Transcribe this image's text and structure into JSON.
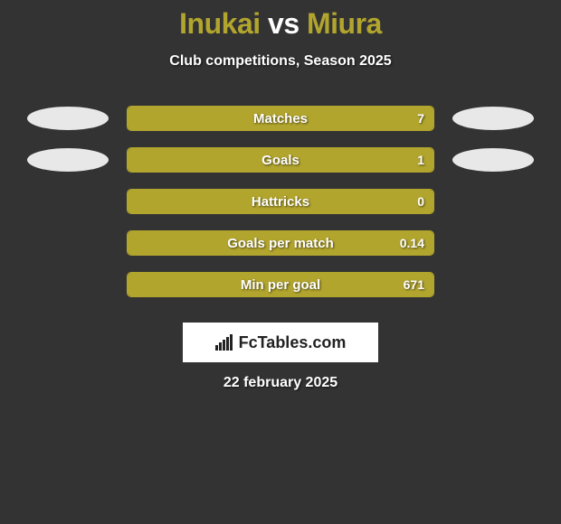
{
  "title": {
    "left": "Inukai",
    "vs": " vs ",
    "right": "Miura",
    "left_color": "#b2a52e",
    "right_color": "#b2a52e",
    "vs_color": "#ffffff"
  },
  "subtitle": "Club competitions, Season 2025",
  "bar_style": {
    "border_color": "#b2a52e",
    "fill_color": "#b2a52e",
    "background": "transparent"
  },
  "ovals": {
    "left_color": "#e8e8e8",
    "right_color": "#e8e8e8"
  },
  "rows": [
    {
      "label": "Matches",
      "value": "7",
      "fill_pct": 100,
      "show_ovals": true
    },
    {
      "label": "Goals",
      "value": "1",
      "fill_pct": 100,
      "show_ovals": true
    },
    {
      "label": "Hattricks",
      "value": "0",
      "fill_pct": 100,
      "show_ovals": false
    },
    {
      "label": "Goals per match",
      "value": "0.14",
      "fill_pct": 100,
      "show_ovals": false
    },
    {
      "label": "Min per goal",
      "value": "671",
      "fill_pct": 100,
      "show_ovals": false
    }
  ],
  "logo": {
    "icon_name": "bar-chart-icon",
    "text": "FcTables.com"
  },
  "footer_date": "22 february 2025"
}
